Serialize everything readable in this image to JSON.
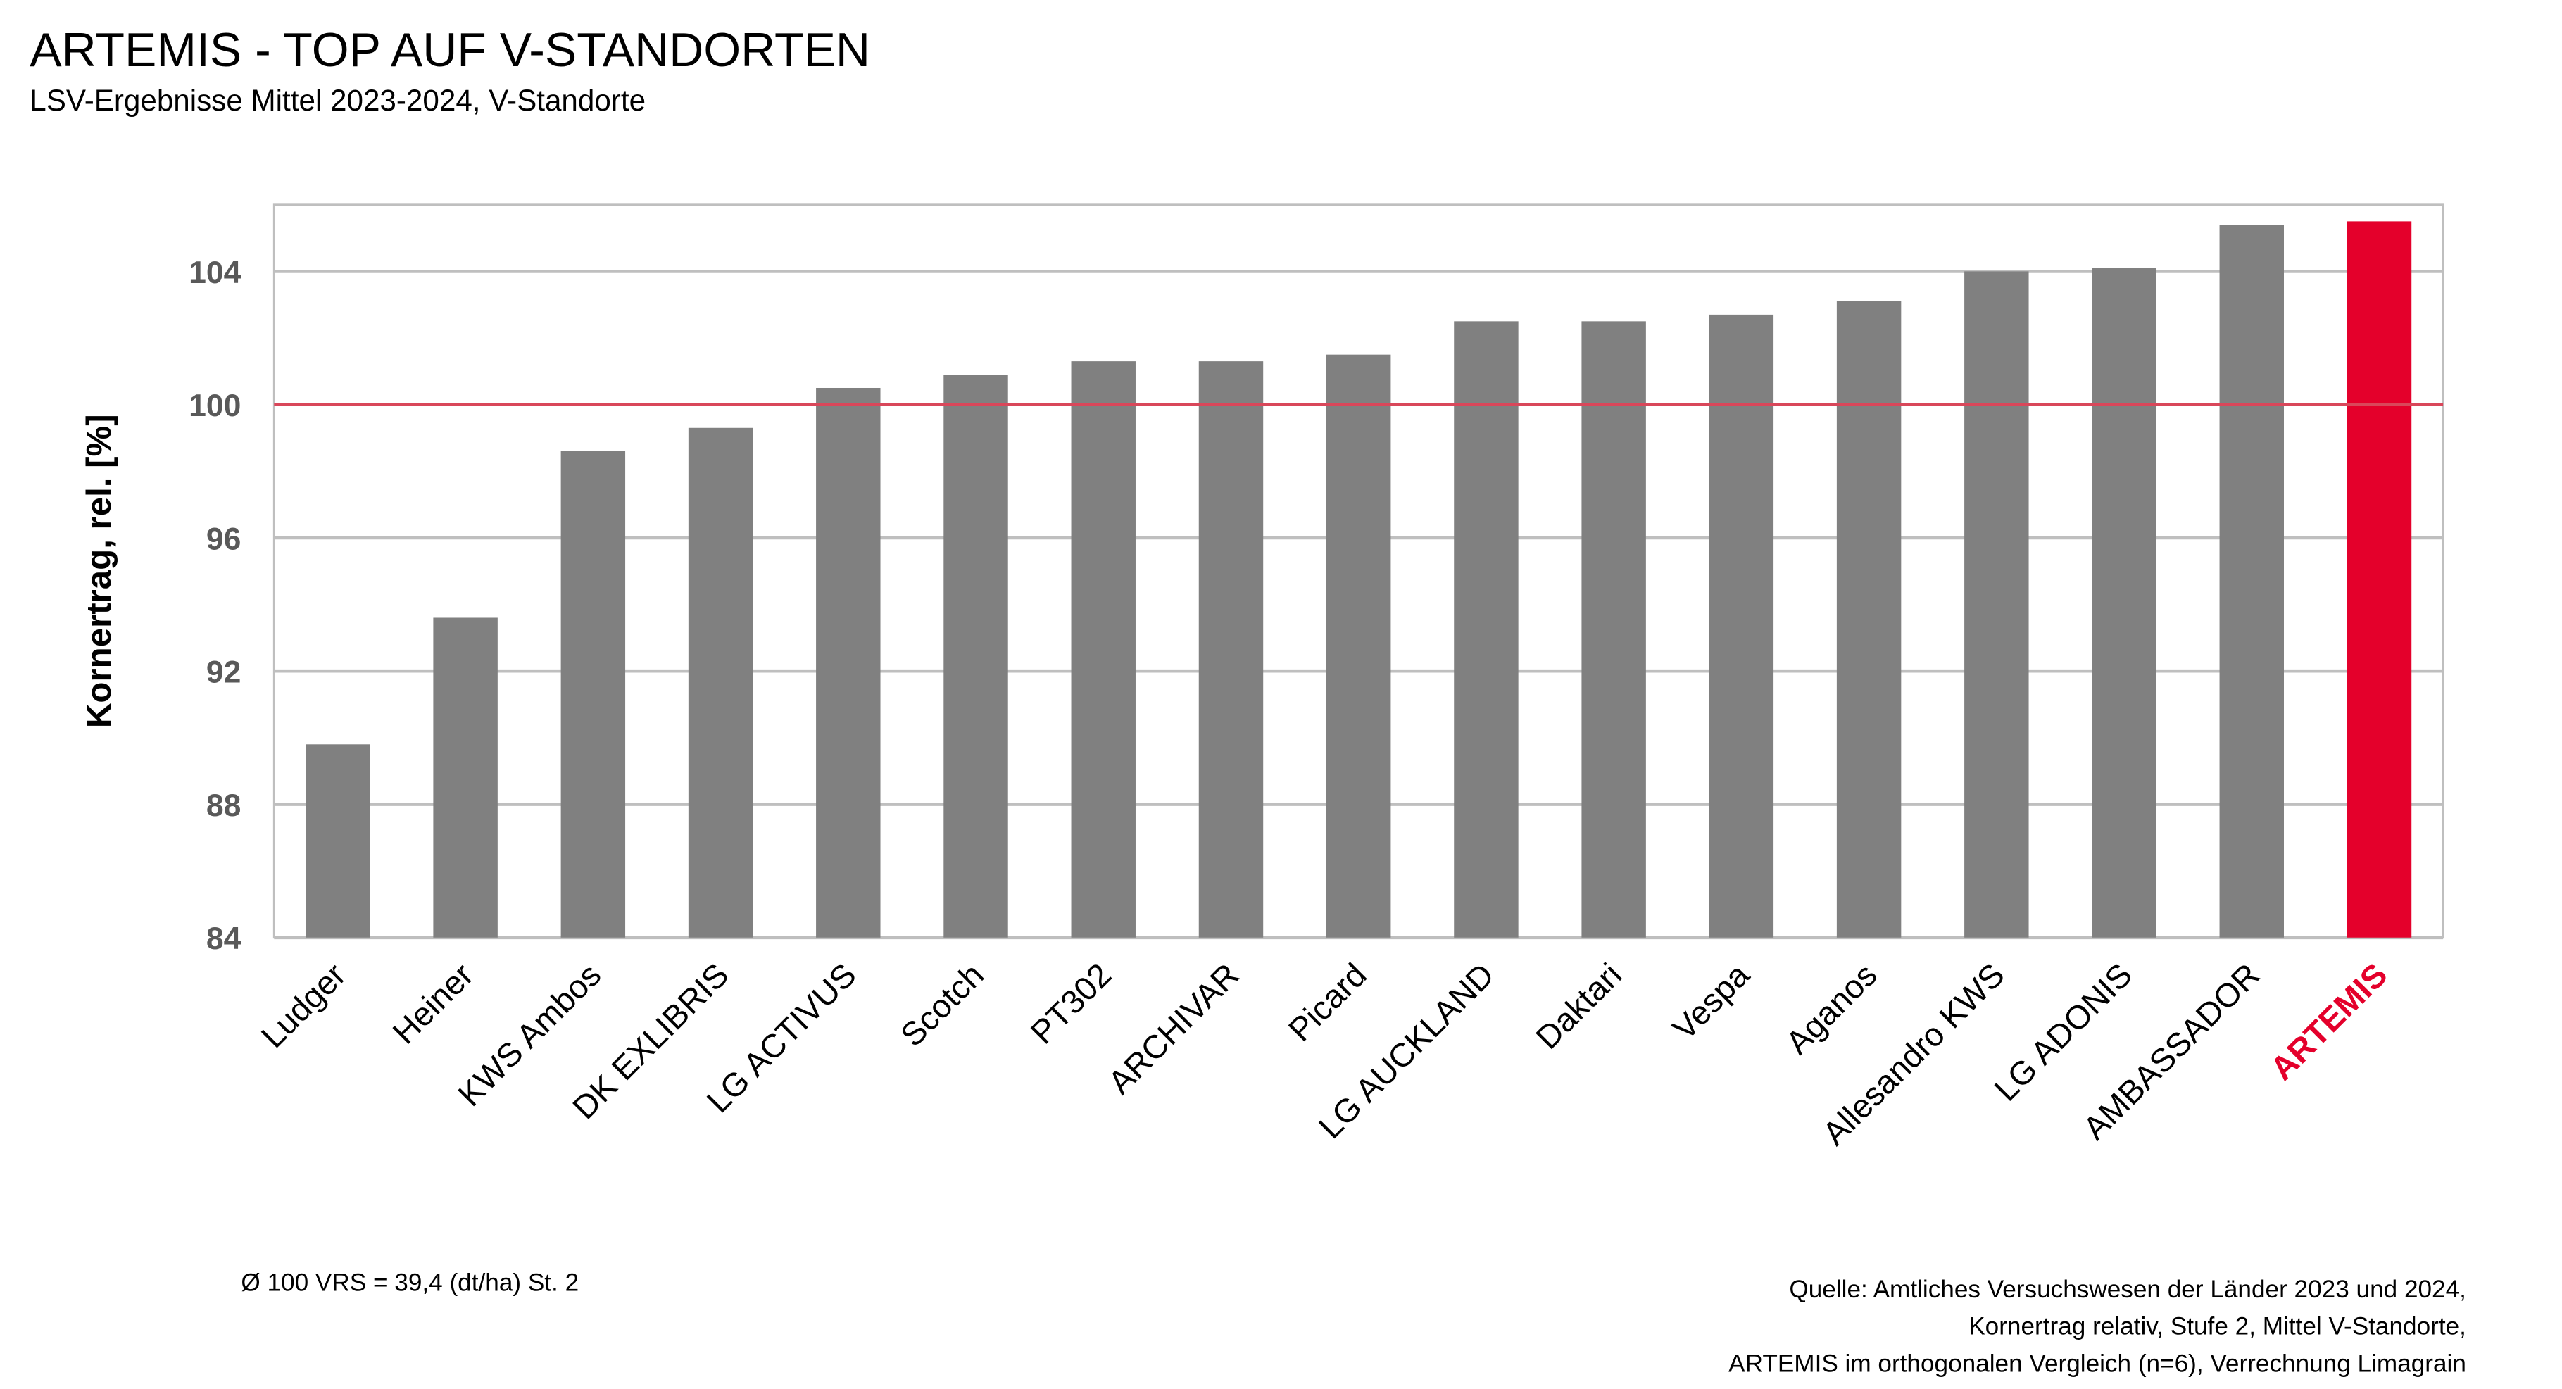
{
  "chart_data": {
    "type": "bar",
    "title": "ARTEMIS - TOP AUF V-STANDORTEN",
    "subtitle": "LSV-Ergebnisse Mittel 2023-2024, V-Standorte",
    "y_label": "Kornertrag, rel. [%]",
    "categories": [
      "Ludger",
      "Heiner",
      "KWS Ambos",
      "DK EXLIBRIS",
      "LG ACTIVUS",
      "Scotch",
      "PT302",
      "ARCHIVAR",
      "Picard",
      "LG AUCKLAND",
      "Daktari",
      "Vespa",
      "Aganos",
      "Allesandro KWS",
      "LG ADONIS",
      "AMBASSADOR",
      "ARTEMIS"
    ],
    "values": [
      89.8,
      93.6,
      98.6,
      99.3,
      100.5,
      100.9,
      101.3,
      101.3,
      101.5,
      102.5,
      102.5,
      102.7,
      103.1,
      104.0,
      104.1,
      105.4,
      105.5
    ],
    "colors": [
      "#808080",
      "#808080",
      "#808080",
      "#808080",
      "#808080",
      "#808080",
      "#808080",
      "#808080",
      "#808080",
      "#808080",
      "#808080",
      "#808080",
      "#808080",
      "#808080",
      "#808080",
      "#808080",
      "#e4002b"
    ],
    "ylim": [
      84,
      106
    ],
    "yticks": [
      84,
      88,
      92,
      96,
      100,
      104
    ],
    "grid": true,
    "reference_line": {
      "value": 100,
      "color": "#d9475a"
    },
    "footnote": "Ø 100 VRS = 39,4 (dt/ha) St. 2",
    "source": [
      "Quelle: Amtliches Versuchswesen der Länder 2023 und 2024,",
      "Kornertrag relativ, Stufe 2, Mittel V-Standorte,",
      "ARTEMIS im orthogonalen Vergleich (n=6), Verrechnung Limagrain"
    ]
  }
}
